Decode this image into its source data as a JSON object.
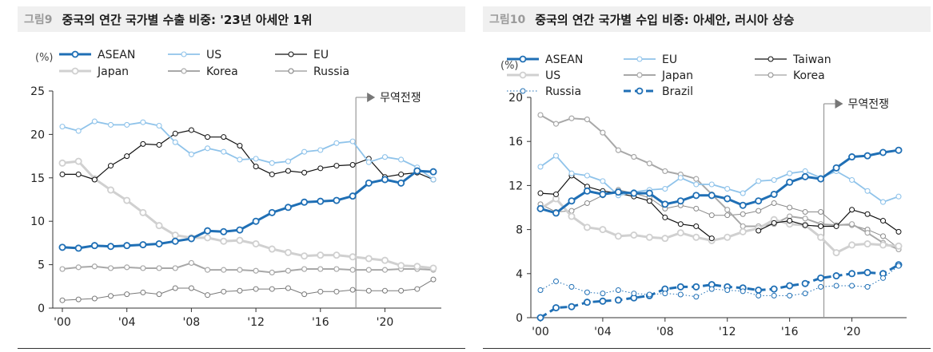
{
  "chart_data": [
    {
      "type": "line",
      "figure_label": "그림9",
      "title": "중국의 연간 국가별 수출 비중: '23년 아세안 1위",
      "unit": "(%)",
      "x": [
        2000,
        2001,
        2002,
        2003,
        2004,
        2005,
        2006,
        2007,
        2008,
        2009,
        2010,
        2011,
        2012,
        2013,
        2014,
        2015,
        2016,
        2017,
        2018,
        2019,
        2020,
        2021,
        2022,
        2023
      ],
      "xticks": [
        {
          "v": 2000,
          "label": "'00"
        },
        {
          "v": 2004,
          "label": "'04"
        },
        {
          "v": 2008,
          "label": "'08"
        },
        {
          "v": 2012,
          "label": "'12"
        },
        {
          "v": 2016,
          "label": "'16"
        },
        {
          "v": 2020,
          "label": "'20"
        }
      ],
      "ylim": [
        0,
        25
      ],
      "yticks": [
        0,
        5,
        10,
        15,
        20,
        25
      ],
      "annotation": {
        "text": "무역전쟁",
        "x": 2018.2
      },
      "legend_cols": 3,
      "series": [
        {
          "name": "ASEAN",
          "color": "#1f6fb5",
          "width": 3,
          "marker": true,
          "dash": "",
          "values": [
            7.0,
            6.9,
            7.2,
            7.1,
            7.2,
            7.3,
            7.4,
            7.7,
            8.0,
            8.9,
            8.8,
            9.0,
            10.0,
            11.0,
            11.6,
            12.2,
            12.3,
            12.4,
            12.9,
            14.4,
            14.8,
            14.4,
            15.8,
            15.7
          ]
        },
        {
          "name": "US",
          "color": "#8fc3ea",
          "width": 1.8,
          "marker": true,
          "dash": "",
          "values": [
            20.9,
            20.4,
            21.5,
            21.1,
            21.1,
            21.4,
            21.0,
            19.1,
            17.7,
            18.4,
            18.0,
            17.1,
            17.2,
            16.7,
            16.9,
            18.0,
            18.2,
            19.0,
            19.2,
            16.8,
            17.4,
            17.1,
            16.2,
            14.8
          ]
        },
        {
          "name": "EU",
          "color": "#111111",
          "width": 1.2,
          "marker": true,
          "dash": "",
          "values": [
            15.4,
            15.4,
            14.8,
            16.4,
            17.5,
            18.9,
            18.8,
            20.1,
            20.5,
            19.7,
            19.7,
            18.7,
            16.3,
            15.4,
            15.8,
            15.6,
            16.1,
            16.4,
            16.5,
            17.2,
            15.1,
            15.4,
            15.6,
            14.8
          ]
        },
        {
          "name": "Japan",
          "color": "#d0d0d0",
          "width": 3,
          "marker": true,
          "dash": "",
          "values": [
            16.7,
            16.9,
            14.9,
            13.6,
            12.4,
            11.0,
            9.5,
            8.4,
            8.1,
            8.1,
            7.7,
            7.8,
            7.4,
            6.8,
            6.4,
            6.0,
            6.1,
            6.1,
            5.9,
            5.7,
            5.5,
            4.9,
            4.8,
            4.6
          ]
        },
        {
          "name": "Korea",
          "color": "#a8a8a8",
          "width": 2,
          "marker": true,
          "dash": "",
          "values": [
            4.5,
            4.7,
            4.8,
            4.6,
            4.7,
            4.6,
            4.6,
            4.6,
            5.2,
            4.4,
            4.4,
            4.4,
            4.3,
            4.1,
            4.3,
            4.5,
            4.5,
            4.5,
            4.4,
            4.4,
            4.4,
            4.5,
            4.5,
            4.4
          ]
        },
        {
          "name": "Russia",
          "color": "#7a7a7a",
          "width": 1,
          "marker": true,
          "dash": "",
          "values": [
            0.9,
            1.0,
            1.1,
            1.4,
            1.6,
            1.8,
            1.6,
            2.3,
            2.3,
            1.5,
            1.9,
            2.0,
            2.2,
            2.2,
            2.3,
            1.6,
            1.9,
            1.9,
            2.1,
            2.0,
            2.0,
            2.0,
            2.2,
            3.3
          ]
        }
      ]
    },
    {
      "type": "line",
      "figure_label": "그림10",
      "title": "중국의 연간 국가별 수입 비중: 아세안, 러시아 상승",
      "unit": "(%)",
      "x": [
        2000,
        2001,
        2002,
        2003,
        2004,
        2005,
        2006,
        2007,
        2008,
        2009,
        2010,
        2011,
        2012,
        2013,
        2014,
        2015,
        2016,
        2017,
        2018,
        2019,
        2020,
        2021,
        2022,
        2023
      ],
      "xticks": [
        {
          "v": 2000,
          "label": "'00"
        },
        {
          "v": 2004,
          "label": "'04"
        },
        {
          "v": 2008,
          "label": "'08"
        },
        {
          "v": 2012,
          "label": "'12"
        },
        {
          "v": 2016,
          "label": "'16"
        },
        {
          "v": 2020,
          "label": "'20"
        }
      ],
      "ylim": [
        0,
        20
      ],
      "yticks": [
        0,
        4,
        8,
        12,
        16,
        20
      ],
      "annotation": {
        "text": "무역전쟁",
        "x": 2018.2
      },
      "legend_cols": 3,
      "series": [
        {
          "name": "ASEAN",
          "color": "#1f6fb5",
          "width": 3,
          "marker": true,
          "dash": "",
          "values": [
            9.9,
            9.5,
            10.6,
            11.5,
            11.2,
            11.4,
            11.3,
            11.3,
            10.3,
            10.6,
            11.1,
            11.1,
            10.8,
            10.2,
            10.6,
            11.2,
            12.3,
            12.8,
            12.6,
            13.6,
            14.6,
            14.7,
            15.0,
            15.2
          ]
        },
        {
          "name": "EU",
          "color": "#8fc3ea",
          "width": 1.8,
          "marker": true,
          "dash": "",
          "values": [
            13.7,
            14.7,
            13.1,
            12.9,
            12.4,
            11.1,
            11.4,
            11.6,
            11.7,
            12.7,
            12.1,
            12.1,
            11.7,
            11.3,
            12.4,
            12.5,
            13.1,
            13.3,
            12.7,
            13.3,
            12.5,
            11.5,
            10.5,
            11.0
          ]
        },
        {
          "name": "Taiwan",
          "color": "#111111",
          "width": 1.2,
          "marker": true,
          "dash": "",
          "values": [
            11.3,
            11.2,
            12.9,
            11.9,
            11.5,
            11.3,
            11.0,
            10.6,
            9.1,
            8.5,
            8.3,
            7.2,
            null,
            null,
            7.9,
            8.6,
            8.8,
            8.4,
            8.3,
            8.3,
            9.8,
            9.4,
            8.8,
            7.8
          ]
        },
        {
          "name": "US",
          "color": "#d0d0d0",
          "width": 3,
          "marker": true,
          "dash": "",
          "values": [
            9.9,
            10.8,
            9.2,
            8.2,
            8.0,
            7.4,
            7.5,
            7.3,
            7.2,
            7.7,
            7.3,
            7.0,
            7.3,
            7.8,
            8.1,
            8.9,
            8.5,
            8.4,
            7.3,
            5.9,
            6.6,
            6.7,
            6.6,
            6.5
          ]
        },
        {
          "name": "Japan",
          "color": "#a8a8a8",
          "width": 2,
          "marker": true,
          "dash": "",
          "values": [
            18.4,
            17.6,
            18.1,
            18.0,
            16.8,
            15.2,
            14.6,
            14.0,
            13.3,
            13.0,
            12.6,
            11.2,
            9.8,
            8.3,
            8.3,
            8.5,
            9.2,
            9.0,
            8.5,
            8.4,
            8.5,
            7.7,
            6.8,
            6.2
          ]
        },
        {
          "name": "Korea",
          "color": "#8a8a8a",
          "width": 1,
          "marker": true,
          "dash": "",
          "values": [
            10.3,
            9.6,
            9.7,
            10.4,
            11.1,
            11.6,
            11.3,
            10.9,
            9.9,
            10.2,
            9.9,
            9.3,
            9.3,
            9.4,
            9.7,
            10.4,
            10.0,
            9.6,
            9.6,
            8.4,
            8.4,
            8.0,
            7.4,
            6.3
          ]
        },
        {
          "name": "Russia",
          "color": "#1f6fb5",
          "width": 1,
          "marker": true,
          "dash": "1.5,2.5",
          "values": [
            2.5,
            3.3,
            2.8,
            2.3,
            2.2,
            2.5,
            2.2,
            2.1,
            2.2,
            2.1,
            1.9,
            2.6,
            2.5,
            2.4,
            2.0,
            2.0,
            2.0,
            2.2,
            2.8,
            2.9,
            2.9,
            2.8,
            3.6,
            4.7
          ]
        },
        {
          "name": "Brazil",
          "color": "#1f6fb5",
          "width": 3,
          "marker": true,
          "dash": "9,5",
          "values": [
            0.0,
            0.9,
            1.0,
            1.4,
            1.5,
            1.6,
            1.8,
            2.0,
            2.6,
            2.8,
            2.8,
            3.0,
            2.8,
            2.7,
            2.5,
            2.6,
            2.9,
            3.1,
            3.6,
            3.8,
            4.0,
            4.1,
            4.0,
            4.8
          ]
        }
      ]
    }
  ]
}
